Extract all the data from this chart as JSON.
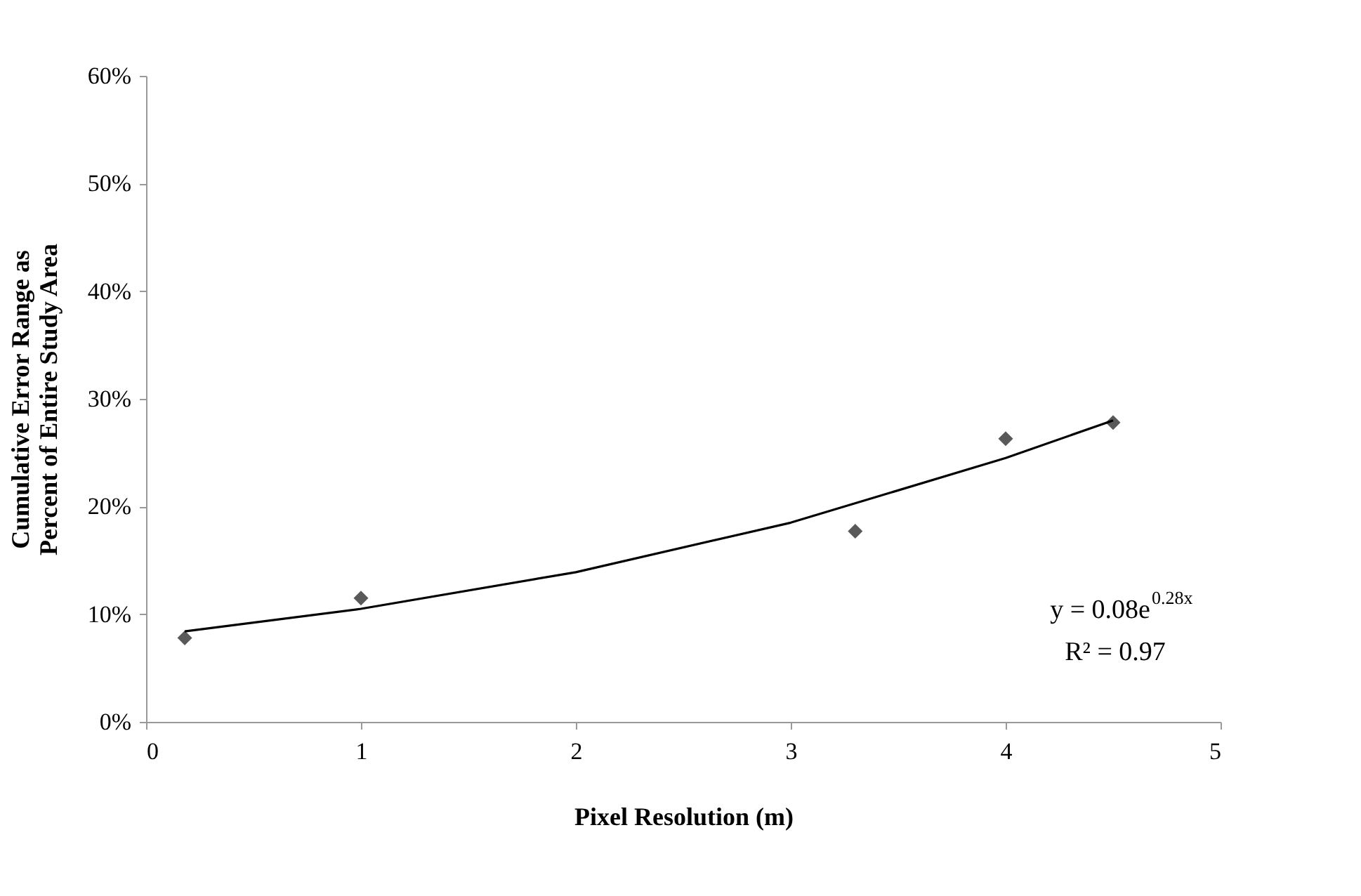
{
  "chart_data": {
    "type": "scatter",
    "xlabel": "Pixel Resolution (m)",
    "ylabel": "Cumulative Error Range as\nPercent of Entire Study Area",
    "x": [
      0.18,
      1,
      3.3,
      4,
      4.5
    ],
    "series": [
      {
        "color": "#595959",
        "marker": "diamond",
        "values": [
          0.078,
          0.115,
          0.177,
          0.263,
          0.278
        ]
      },
      {
        "type": "line",
        "color": "#000000",
        "marker": "none",
        "line_style": "solid",
        "x": [
          0.18,
          1,
          2,
          3,
          4,
          4.5
        ],
        "values": [
          0.084,
          0.105,
          0.139,
          0.185,
          0.245,
          0.28
        ]
      }
    ],
    "xlim": [
      0,
      5
    ],
    "xticks": [
      0,
      1,
      2,
      3,
      4,
      5
    ],
    "ylim": [
      0,
      0.6
    ],
    "yticks": [
      {
        "value": 0,
        "label": "0%"
      },
      {
        "value": 0.1,
        "label": "10%"
      },
      {
        "value": 0.2,
        "label": "20%"
      },
      {
        "value": 0.3,
        "label": "30%"
      },
      {
        "value": 0.4,
        "label": "40%"
      },
      {
        "value": 0.5,
        "label": "50%"
      },
      {
        "value": 0.6,
        "label": "60%"
      }
    ],
    "annotations": [
      "y = 0.08e$^{0.28x}$",
      "R² = 0.97"
    ],
    "grid": false
  }
}
